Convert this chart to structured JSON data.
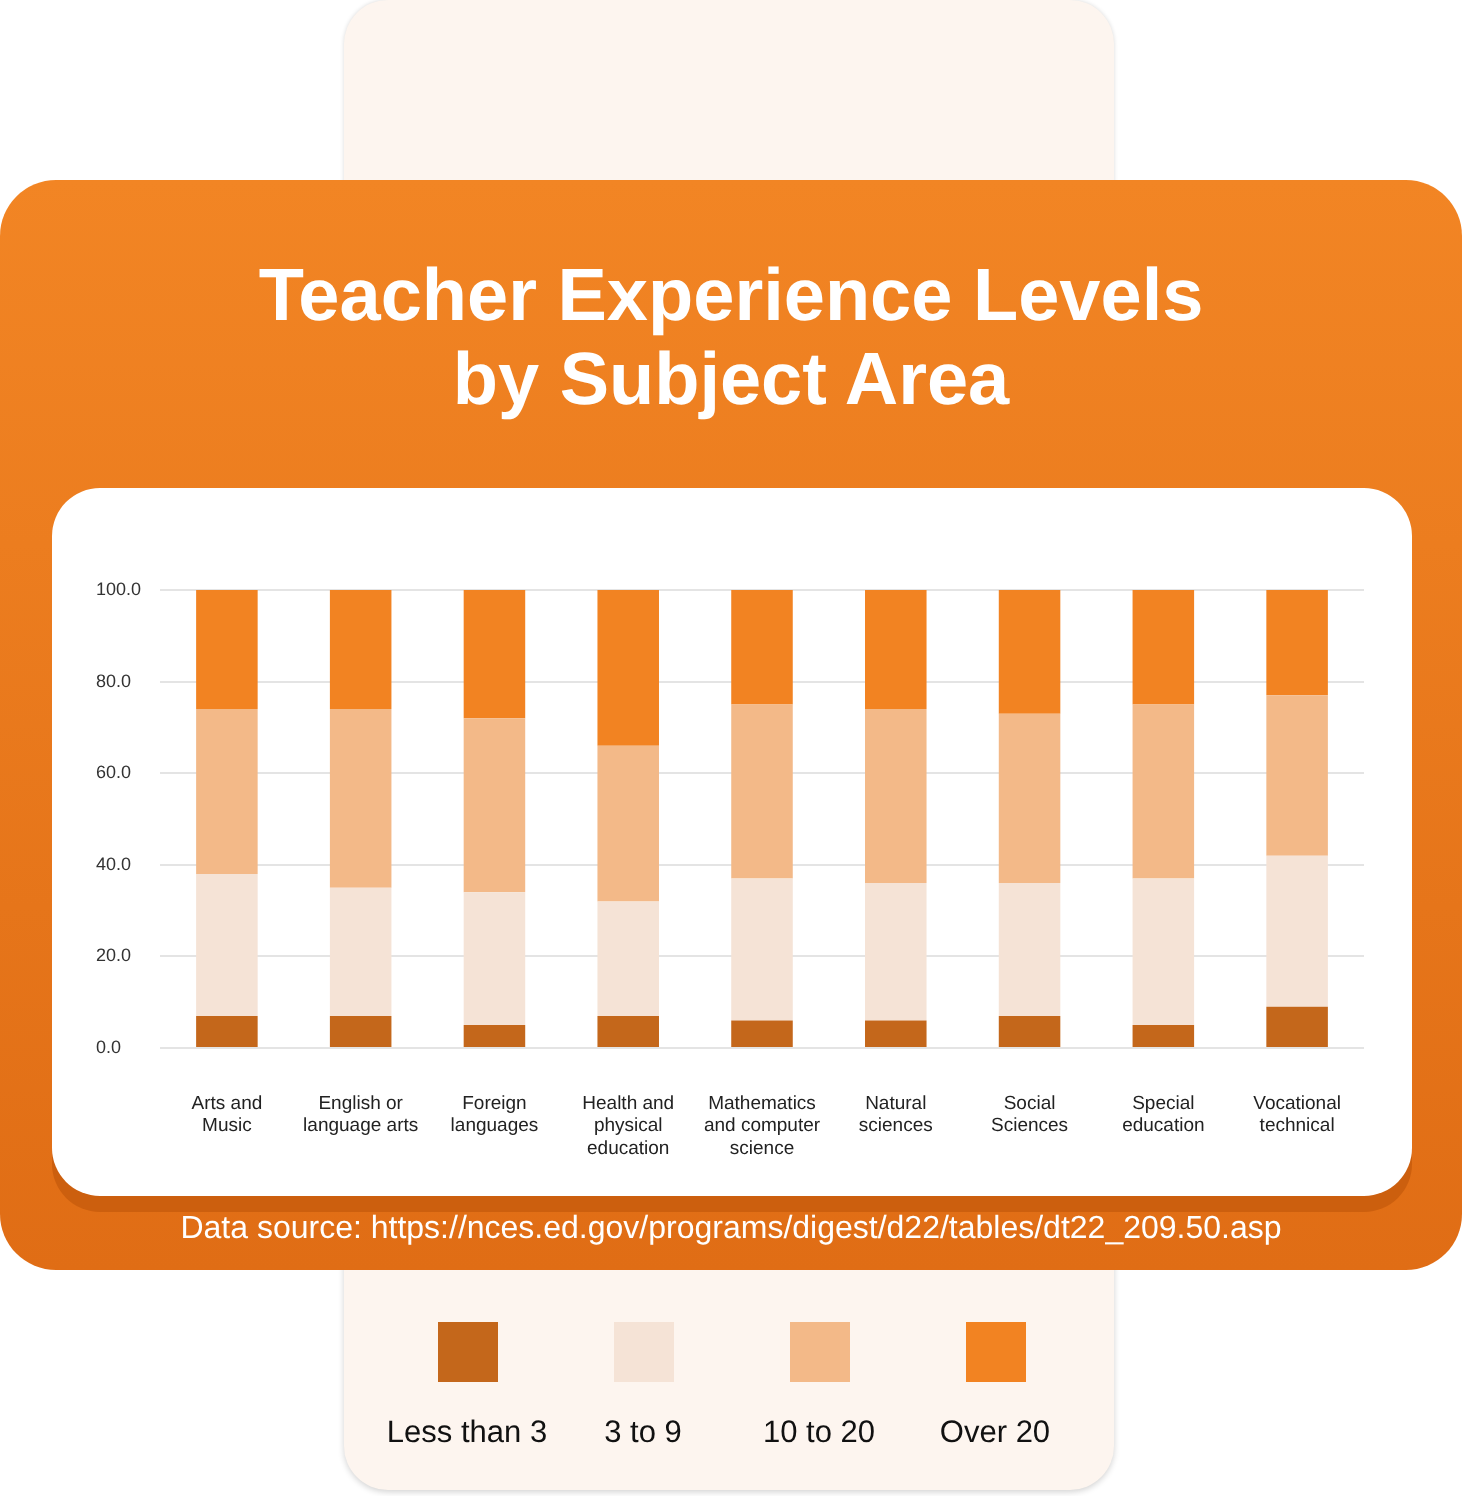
{
  "chart_data": {
    "type": "bar",
    "title": "Teacher Experience Levels by Subject Area",
    "categories": [
      "Arts and Music",
      "English or language arts",
      "Foreign languages",
      "Health and physical education",
      "Mathematics and computer science",
      "Natural sciences",
      "Social Sciences",
      "Special education",
      "Vocational technical"
    ],
    "series": [
      {
        "name": "Less than 3",
        "color": "#c4671b",
        "values": [
          7,
          7,
          5,
          7,
          6,
          6,
          7,
          5,
          9
        ]
      },
      {
        "name": "3 to 9",
        "color": "#f5e3d6",
        "values": [
          31,
          28,
          29,
          25,
          31,
          30,
          29,
          32,
          33
        ]
      },
      {
        "name": "10 to 20",
        "color": "#f3b988",
        "values": [
          36,
          39,
          38,
          34,
          38,
          38,
          37,
          38,
          35
        ]
      },
      {
        "name": "Over 20",
        "color": "#f28322",
        "values": [
          26,
          26,
          28,
          34,
          25,
          26,
          27,
          25,
          23
        ]
      }
    ],
    "stacked": true,
    "ylim": [
      0,
      100
    ],
    "yticks": [
      {
        "value": 0,
        "label": "0.0"
      },
      {
        "value": 20,
        "label": "20.0"
      },
      {
        "value": 40,
        "label": "40.0"
      },
      {
        "value": 60,
        "label": "60.0"
      },
      {
        "value": 80,
        "label": "80.0"
      },
      {
        "value": 100,
        "label": "100.0"
      }
    ],
    "grid": "y",
    "legend": "bottom",
    "annotations": [
      "Data source: https://nces.ed.gov/programs/digest/d22/tables/dt22_209.50.asp"
    ]
  }
}
